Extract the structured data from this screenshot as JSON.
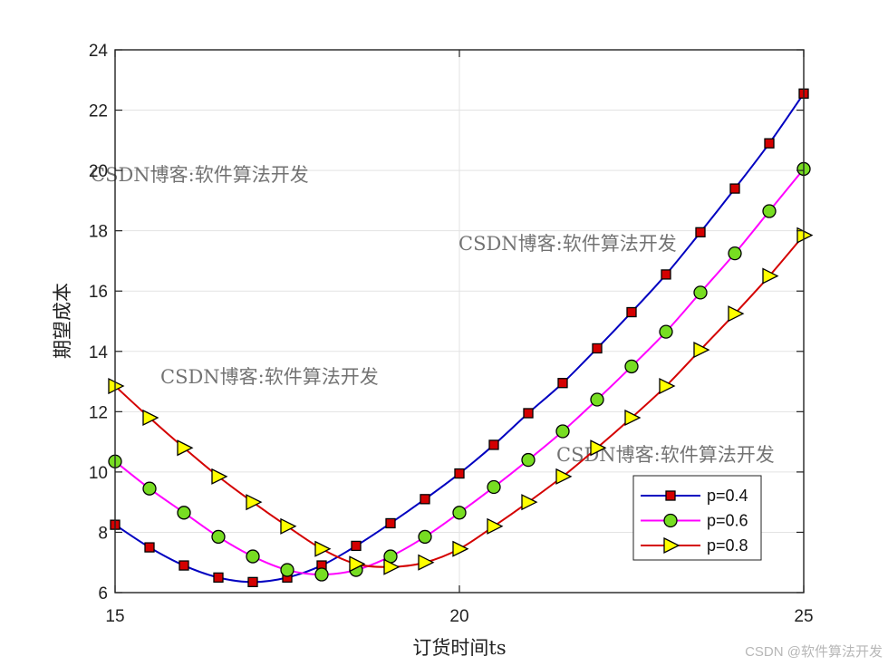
{
  "chart_data": {
    "type": "line",
    "title": "",
    "xlabel": "订货时间ts",
    "ylabel": "期望成本",
    "xlim": [
      15,
      25
    ],
    "ylim": [
      6,
      24
    ],
    "xticks": [
      "15",
      "20",
      "25"
    ],
    "yticks": [
      "6",
      "8",
      "10",
      "12",
      "14",
      "16",
      "18",
      "20",
      "22",
      "24"
    ],
    "grid": true,
    "legend_position": "lower-right",
    "x": [
      15,
      15.5,
      16,
      16.5,
      17,
      17.5,
      18,
      18.5,
      19,
      19.5,
      20,
      20.5,
      21,
      21.5,
      22,
      22.5,
      23,
      23.5,
      24,
      24.5,
      25
    ],
    "series": [
      {
        "name": "p=0.4",
        "color": "#0000c0",
        "marker": "square",
        "marker_fill": "#d40000",
        "values": [
          8.25,
          7.5,
          6.9,
          6.5,
          6.35,
          6.5,
          6.9,
          7.55,
          8.3,
          9.1,
          9.95,
          10.9,
          11.95,
          12.95,
          14.1,
          15.3,
          16.55,
          17.95,
          19.4,
          20.9,
          22.55
        ]
      },
      {
        "name": "p=0.6",
        "color": "#ff00ff",
        "marker": "circle",
        "marker_fill": "#77dd22",
        "values": [
          10.35,
          9.45,
          8.65,
          7.85,
          7.2,
          6.75,
          6.6,
          6.75,
          7.2,
          7.85,
          8.65,
          9.5,
          10.4,
          11.35,
          12.4,
          13.5,
          14.65,
          15.95,
          17.25,
          18.65,
          20.05
        ]
      },
      {
        "name": "p=0.8",
        "color": "#d40000",
        "marker": "triangle-right",
        "marker_fill": "#ffff00",
        "values": [
          12.85,
          11.8,
          10.8,
          9.85,
          9.0,
          8.2,
          7.45,
          6.95,
          6.85,
          7.0,
          7.45,
          8.2,
          9.0,
          9.85,
          10.8,
          11.8,
          12.85,
          14.05,
          15.25,
          16.5,
          17.85
        ]
      }
    ]
  },
  "watermarks": [
    {
      "text": "CSDN博客:软件算法开发",
      "color": "#ee6666"
    },
    {
      "text": "CSDN博客:软件算法开发",
      "color": "#8899ee"
    },
    {
      "text": "CSDN博客:软件算法开发",
      "color": "#f4c288"
    },
    {
      "text": "CSDN博客:软件算法开发",
      "color": "#aaaaaa"
    }
  ],
  "credit": "CSDN @软件算法开发"
}
